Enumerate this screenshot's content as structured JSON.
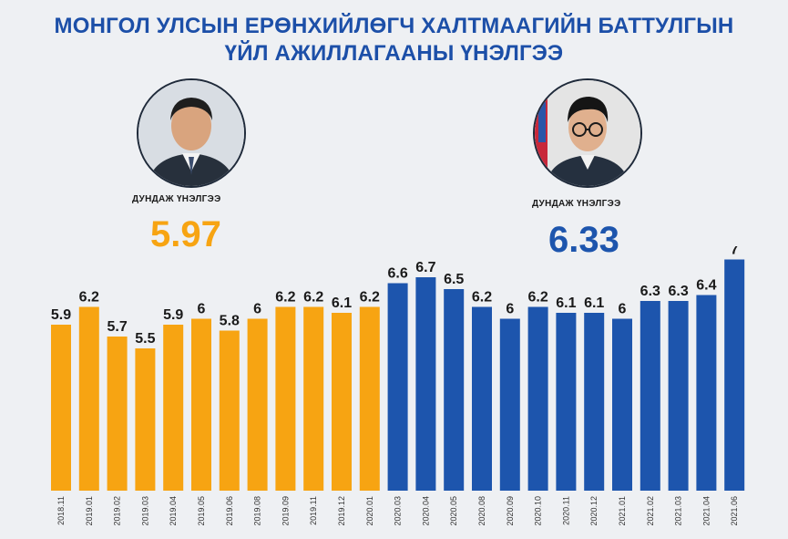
{
  "title": {
    "line1": "МОНГОЛ УЛСЫН ЕРӨНХИЙЛӨГЧ ХАЛТМААГИЙН БАТТУЛГЫН",
    "line2": "ҮЙЛ АЖИЛЛАГААНЫ ҮНЭЛГЭЭ"
  },
  "left_panel": {
    "avg_label": "ДУНДАЖ ҮНЭЛГЭЭ",
    "avg_value": "5.97",
    "color": "#f7a412"
  },
  "right_panel": {
    "avg_label": "ДУНДАЖ ҮНЭЛГЭЭ",
    "avg_value": "6.33",
    "color": "#1d55ad"
  },
  "chart_data": {
    "type": "bar",
    "title": "",
    "xlabel": "",
    "ylabel": "",
    "grid": false,
    "legend": "none",
    "ylim": [
      3.1,
      7.3
    ],
    "categories": [
      "2018.11",
      "2019.01",
      "2019.02",
      "2019.03",
      "2019.04",
      "2019.05",
      "2019.06",
      "2019.08",
      "2019.09",
      "2019.11",
      "2019.12",
      "2020.01",
      "2020.03",
      "2020.04",
      "2020.05",
      "2020.08",
      "2020.09",
      "2020.10",
      "2020.11",
      "2020.12",
      "2021.01",
      "2021.02",
      "2021.03",
      "2021.04",
      "2021.06"
    ],
    "value_labels": [
      "5.9",
      "6.2",
      "5.7",
      "5.5",
      "5.9",
      "6",
      "5.8",
      "6",
      "6.2",
      "6.2",
      "6.1",
      "6.2",
      "6.6",
      "6.7",
      "6.5",
      "6.2",
      "6",
      "6.2",
      "6.1",
      "6.1",
      "6",
      "6.3",
      "6.3",
      "6.4",
      "7"
    ],
    "series": [
      {
        "color": "#f7a412",
        "values": [
          5.9,
          6.2,
          5.7,
          5.5,
          5.9,
          6.0,
          5.8,
          6.0,
          6.2,
          6.2,
          6.1,
          6.2,
          null,
          null,
          null,
          null,
          null,
          null,
          null,
          null,
          null,
          null,
          null,
          null,
          null
        ]
      },
      {
        "color": "#1d55ad",
        "values": [
          null,
          null,
          null,
          null,
          null,
          null,
          null,
          null,
          null,
          null,
          null,
          null,
          6.6,
          6.7,
          6.5,
          6.2,
          6.0,
          6.2,
          6.1,
          6.1,
          6.0,
          6.3,
          6.3,
          6.4,
          7.0
        ]
      }
    ]
  }
}
